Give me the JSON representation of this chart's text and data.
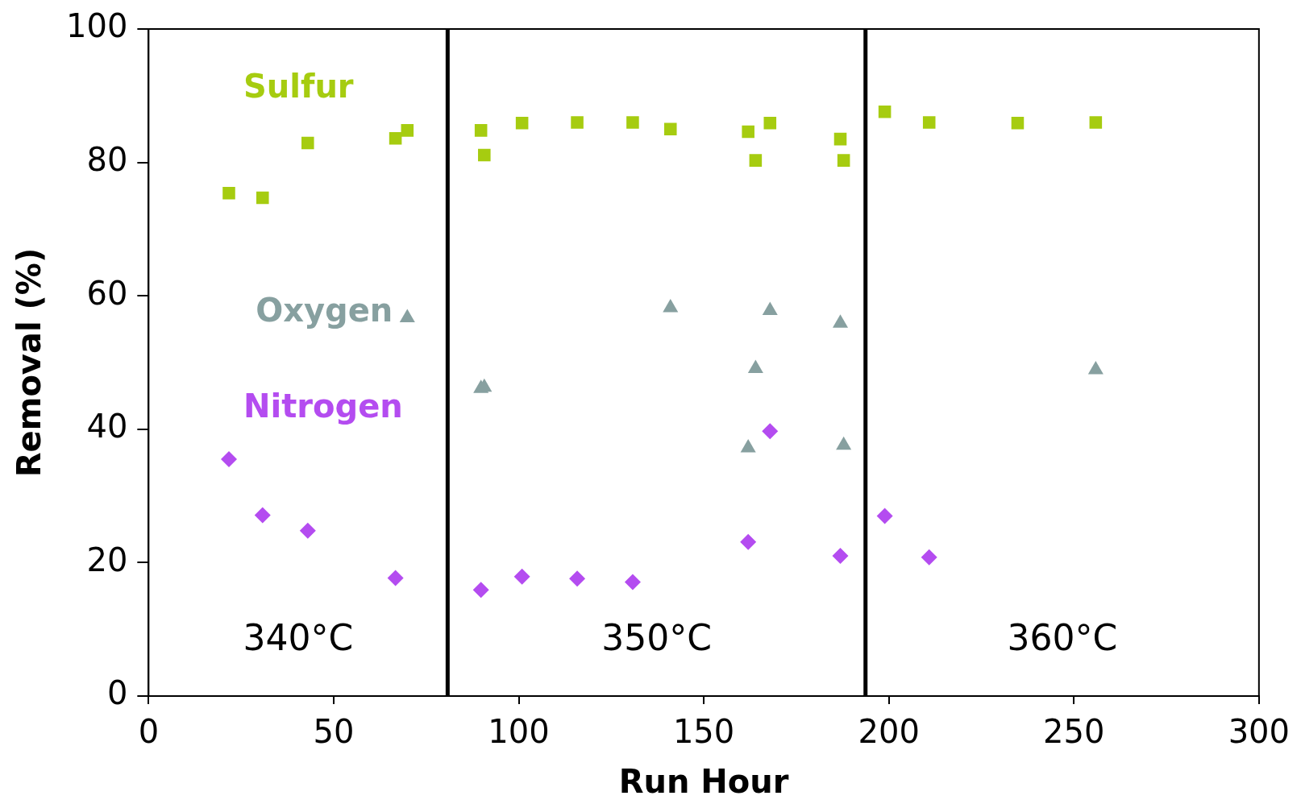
{
  "chart_data": {
    "type": "scatter",
    "xlabel": "Run Hour",
    "ylabel": "Removal (%)",
    "xlim": [
      0,
      300
    ],
    "xticks": [
      0,
      50,
      100,
      150,
      200,
      250,
      300
    ],
    "ylim": [
      0,
      100
    ],
    "yticks": [
      0,
      20,
      40,
      60,
      80,
      100
    ],
    "grid": false,
    "legend": false,
    "series": [
      {
        "name": "Sulfur",
        "color": "#a6cc10",
        "marker": "square",
        "x": [
          21.7,
          30.8,
          43,
          66.7,
          69.9,
          89.8,
          90.7,
          100.9,
          115.8,
          130.8,
          141,
          162,
          164,
          167.9,
          186.9,
          187.8,
          198.9,
          210.9,
          234.8,
          255.9
        ],
        "values": [
          75.4,
          74.7,
          82.9,
          83.6,
          84.8,
          84.8,
          81.1,
          85.9,
          86.0,
          86.0,
          85.0,
          84.6,
          80.3,
          85.9,
          83.5,
          80.3,
          87.6,
          86.0,
          85.9,
          86.0
        ]
      },
      {
        "name": "Oxygen",
        "color": "#87a0a0",
        "marker": "triangle",
        "x": [
          69.9,
          89.8,
          90.7,
          141,
          162,
          164,
          167.9,
          186.9,
          187.8,
          255.9
        ],
        "values": [
          56.7,
          46.1,
          46.3,
          58.2,
          37.2,
          49.1,
          57.8,
          55.9,
          37.6,
          48.9
        ]
      },
      {
        "name": "Nitrogen",
        "color": "#b44cf0",
        "marker": "diamond",
        "x": [
          21.7,
          30.8,
          43,
          66.7,
          89.8,
          100.9,
          115.8,
          130.8,
          162,
          167.9,
          186.9,
          198.9,
          210.9
        ],
        "values": [
          35.5,
          27.1,
          24.8,
          17.7,
          15.9,
          17.9,
          17.6,
          17.1,
          23.1,
          39.7,
          21.0,
          27.0,
          20.8
        ]
      }
    ],
    "ref_lines": [
      {
        "axis": "x",
        "value": 80.8,
        "color": "#000000"
      },
      {
        "axis": "x",
        "value": 193.7,
        "color": "#000000"
      }
    ],
    "annotations": [
      "340°C",
      "350°C",
      "360°C"
    ]
  }
}
